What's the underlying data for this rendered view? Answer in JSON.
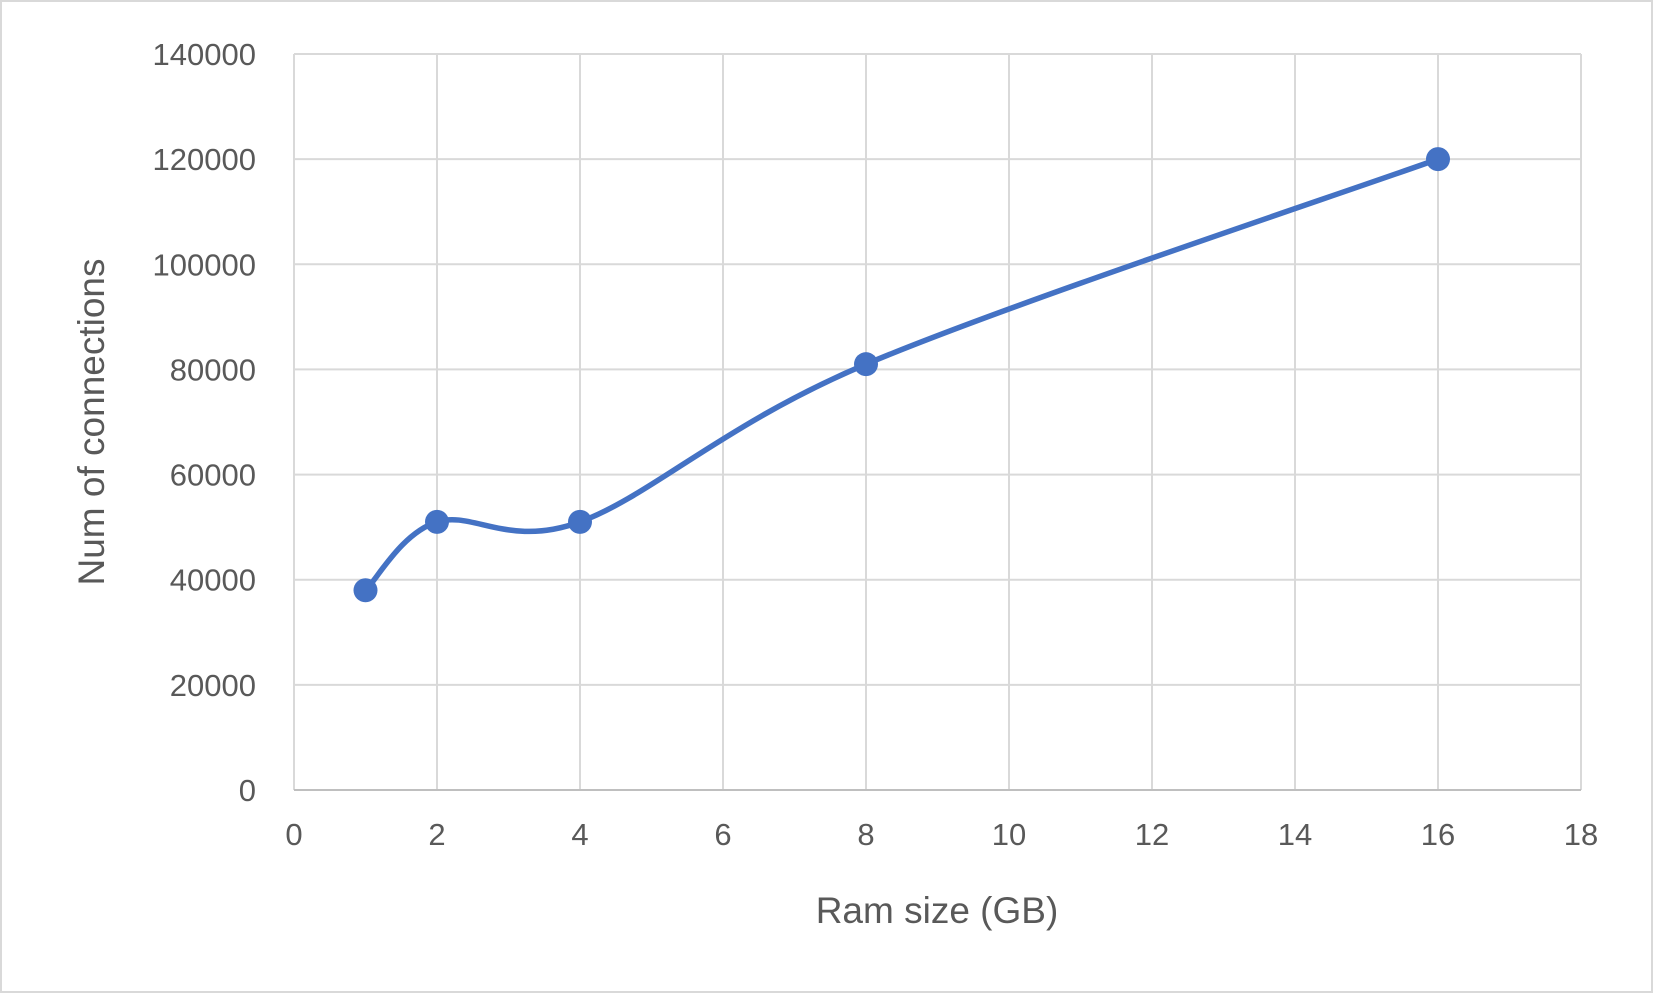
{
  "chart_data": {
    "type": "scatter",
    "title": "",
    "xlabel": "Ram size (GB)",
    "ylabel": "Num of connections",
    "xlim": [
      0,
      18
    ],
    "ylim": [
      0,
      140000
    ],
    "x_ticks": [
      0,
      2,
      4,
      6,
      8,
      10,
      12,
      14,
      16,
      18
    ],
    "y_ticks": [
      0,
      20000,
      40000,
      60000,
      80000,
      100000,
      120000,
      140000
    ],
    "grid": true,
    "legend": "none",
    "smoothed_line": true,
    "series": [
      {
        "color": "#4472C4",
        "points": [
          {
            "x": 1,
            "y": 38000
          },
          {
            "x": 2,
            "y": 51000
          },
          {
            "x": 4,
            "y": 51000
          },
          {
            "x": 8,
            "y": 81000
          },
          {
            "x": 16,
            "y": 120000
          }
        ]
      }
    ]
  }
}
